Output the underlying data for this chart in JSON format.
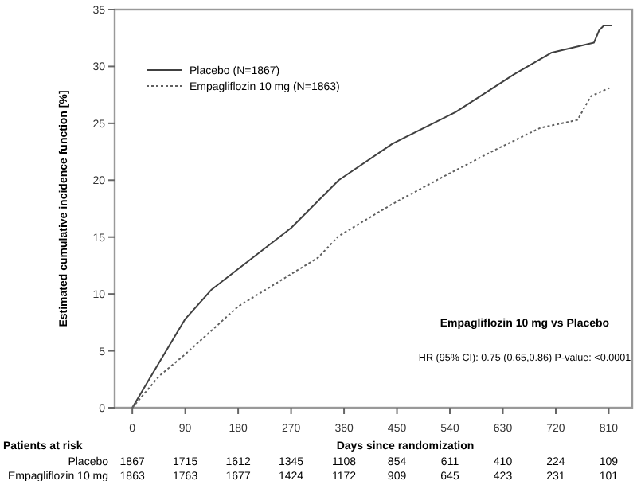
{
  "chart_data": {
    "type": "line",
    "xlabel": "Days since randomization",
    "ylabel": "Estimated cumulative incidence function [%]",
    "xlim": [
      -30,
      850
    ],
    "ylim": [
      0,
      35
    ],
    "xticks": [
      0,
      90,
      180,
      270,
      360,
      450,
      540,
      630,
      720,
      810
    ],
    "yticks": [
      0,
      5,
      10,
      15,
      20,
      25,
      30,
      35
    ],
    "legend": "top left",
    "grid": false,
    "series": [
      {
        "name": "Placebo (N=1867)",
        "color": "#404040",
        "line_style": "solid",
        "x": [
          0,
          46,
          90,
          135,
          180,
          270,
          351,
          442,
          550,
          649,
          712,
          785,
          794,
          802,
          816
        ],
        "values": [
          0,
          4.0,
          7.8,
          10.4,
          12.2,
          15.8,
          20.0,
          23.2,
          26.0,
          29.3,
          31.2,
          32.1,
          33.2,
          33.6,
          33.6
        ]
      },
      {
        "name": "Empagliflozin 10 mg (N=1863)",
        "color": "#606060",
        "line_style": "dotted",
        "x": [
          0,
          46,
          90,
          180,
          316,
          351,
          442,
          532,
          622,
          694,
          757,
          780,
          811
        ],
        "values": [
          0,
          2.8,
          4.7,
          8.9,
          13.2,
          15.1,
          17.9,
          20.4,
          22.8,
          24.6,
          25.3,
          27.4,
          28.1
        ]
      }
    ],
    "annotations": [
      "Empagliflozin 10 mg vs Placebo",
      "HR (95% CI): 0.75 (0.65,0.86) P-value: <0.0001",
      "Patients at risk",
      "Placebo",
      "1867 1715 1612 1345 1108 854 611 410 224 109",
      "Empagliflozin 10 mg",
      "1863 1763 1677 1424 1172 909 645 423 231 101"
    ]
  }
}
